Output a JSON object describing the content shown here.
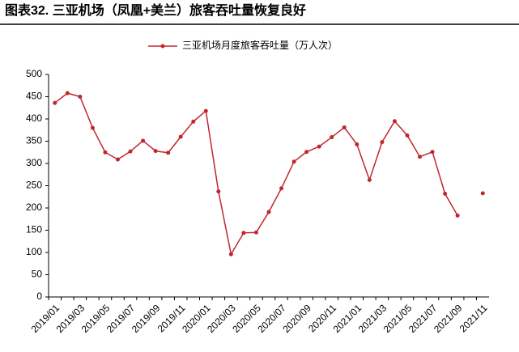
{
  "chart_data": {
    "type": "line",
    "title": "图表32. 三亚机场（凤凰+美兰）旅客吞吐量恢复良好",
    "categories": [
      "2019/01",
      null,
      "2019/03",
      null,
      "2019/05",
      null,
      "2019/07",
      null,
      "2019/09",
      null,
      "2019/11",
      null,
      "2020/01",
      null,
      "2020/03",
      null,
      "2020/05",
      null,
      "2020/07",
      null,
      "2020/09",
      null,
      "2020/11",
      null,
      "2021/01",
      null,
      "2021/03",
      null,
      "2021/05",
      null,
      "2021/07",
      null,
      "2021/09",
      null,
      "2021/11"
    ],
    "series": [
      {
        "name": "三亚机场月度旅客吞吐量（万人次）",
        "color": "#c0272d",
        "values": [
          436,
          458,
          450,
          380,
          325,
          309,
          327,
          351,
          328,
          324,
          360,
          394,
          418,
          237,
          96,
          144,
          145,
          191,
          244,
          304,
          326,
          338,
          359,
          381,
          343,
          263,
          348,
          395,
          363,
          315,
          326,
          232,
          183,
          null,
          233
        ]
      }
    ],
    "ylim": [
      0,
      500
    ],
    "yticks": [
      0,
      50,
      100,
      150,
      200,
      250,
      300,
      350,
      400,
      450,
      500
    ],
    "legend": "top",
    "grid": false
  }
}
